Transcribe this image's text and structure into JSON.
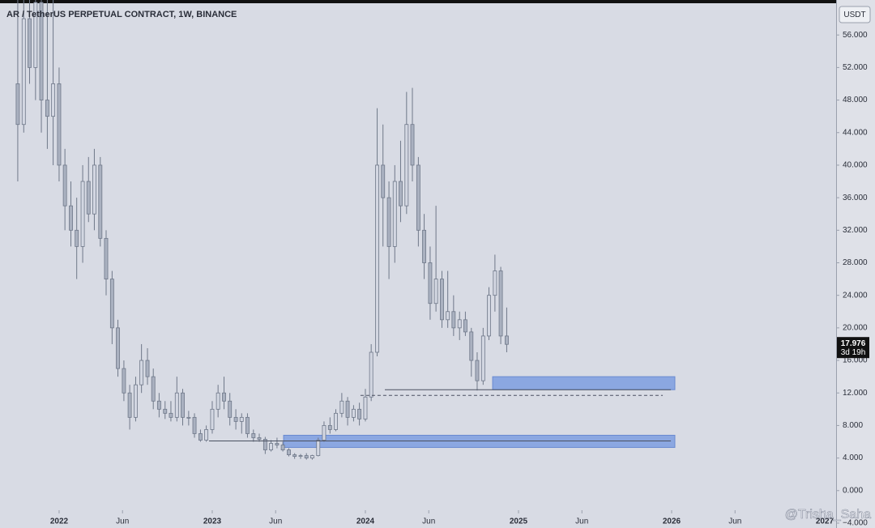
{
  "chart_data": {
    "type": "candlestick",
    "title": "AR / TetherUS PERPETUAL CONTRACT, 1W, BINANCE",
    "currency": "USDT",
    "last_price": 17.976,
    "countdown": "3d 19h",
    "watermark": "@Trisha_Saha",
    "up_color": "#d3d7e2",
    "down_color": "#aab1c0",
    "wick_color": "#6f7889",
    "zone_color": "#7e9ee0",
    "xlim": [
      2021.614,
      2027.074
    ],
    "ylim": [
      -4.6,
      60.3
    ],
    "xticks": [
      {
        "value": 2022,
        "label": "2022"
      },
      {
        "value": 2022.414,
        "label": "Jun"
      },
      {
        "value": 2023,
        "label": "2023"
      },
      {
        "value": 2023.414,
        "label": "Jun"
      },
      {
        "value": 2024,
        "label": "2024"
      },
      {
        "value": 2024.414,
        "label": "Jun"
      },
      {
        "value": 2025,
        "label": "2025"
      },
      {
        "value": 2025.414,
        "label": "Jun"
      },
      {
        "value": 2026,
        "label": "2026"
      },
      {
        "value": 2026.414,
        "label": "Jun"
      },
      {
        "value": 2027,
        "label": "2027"
      }
    ],
    "yticks": [
      {
        "value": 56,
        "label": "56.000"
      },
      {
        "value": 52,
        "label": "52.000"
      },
      {
        "value": 48,
        "label": "48.000"
      },
      {
        "value": 44,
        "label": "44.000"
      },
      {
        "value": 40,
        "label": "40.000"
      },
      {
        "value": 36,
        "label": "36.000"
      },
      {
        "value": 32,
        "label": "32.000"
      },
      {
        "value": 28,
        "label": "28.000"
      },
      {
        "value": 24,
        "label": "24.000"
      },
      {
        "value": 20,
        "label": "20.000"
      },
      {
        "value": 16,
        "label": "16.000"
      },
      {
        "value": 12,
        "label": "12.000"
      },
      {
        "value": 8,
        "label": "8.000"
      },
      {
        "value": 4,
        "label": "4.000"
      },
      {
        "value": 0,
        "label": "0.000"
      },
      {
        "value": -4,
        "label": "−4.000"
      }
    ],
    "candles": [
      [
        2021.73,
        50,
        62,
        38,
        45
      ],
      [
        2021.769,
        45,
        62,
        44,
        58
      ],
      [
        2021.807,
        58,
        62,
        50,
        52
      ],
      [
        2021.846,
        52,
        62,
        48,
        60
      ],
      [
        2021.884,
        60,
        62,
        44,
        48
      ],
      [
        2021.923,
        48,
        62,
        42,
        46
      ],
      [
        2021.961,
        46,
        62,
        40,
        50
      ],
      [
        2022.0,
        50,
        52,
        38,
        40
      ],
      [
        2022.038,
        40,
        42,
        32,
        35
      ],
      [
        2022.077,
        35,
        38,
        30,
        32
      ],
      [
        2022.115,
        32,
        36,
        26,
        30
      ],
      [
        2022.154,
        30,
        40,
        28,
        38
      ],
      [
        2022.192,
        38,
        41,
        33,
        34
      ],
      [
        2022.23,
        34,
        42,
        32,
        40
      ],
      [
        2022.269,
        40,
        41,
        30,
        31
      ],
      [
        2022.307,
        31,
        32,
        24,
        26
      ],
      [
        2022.346,
        26,
        27,
        18,
        20
      ],
      [
        2022.384,
        20,
        21,
        14,
        15
      ],
      [
        2022.423,
        15,
        16,
        11,
        12
      ],
      [
        2022.461,
        12,
        13,
        7.5,
        9
      ],
      [
        2022.5,
        9,
        14,
        8.5,
        13
      ],
      [
        2022.538,
        13,
        18,
        12,
        16
      ],
      [
        2022.577,
        16,
        17.5,
        13,
        14
      ],
      [
        2022.615,
        14,
        15,
        10,
        11
      ],
      [
        2022.653,
        11,
        12,
        9,
        10
      ],
      [
        2022.692,
        10,
        11,
        8.8,
        9.5
      ],
      [
        2022.73,
        9.5,
        11,
        8.5,
        9
      ],
      [
        2022.769,
        9,
        14,
        8.5,
        12
      ],
      [
        2022.807,
        12,
        12.5,
        8,
        9
      ],
      [
        2022.846,
        9,
        9.8,
        8,
        9
      ],
      [
        2022.884,
        9,
        9.5,
        6.5,
        7
      ],
      [
        2022.923,
        7,
        7.5,
        6,
        6.2
      ],
      [
        2022.961,
        6.2,
        8,
        6,
        7.5
      ],
      [
        2023.0,
        7.5,
        11,
        7,
        10
      ],
      [
        2023.038,
        10,
        13,
        9,
        12
      ],
      [
        2023.077,
        12,
        14,
        10,
        11
      ],
      [
        2023.115,
        11,
        12,
        8,
        9
      ],
      [
        2023.154,
        9,
        10,
        7.5,
        8.5
      ],
      [
        2023.192,
        8.5,
        9.5,
        7,
        9
      ],
      [
        2023.23,
        9,
        9.5,
        6.5,
        7
      ],
      [
        2023.269,
        7,
        7.5,
        6,
        6.5
      ],
      [
        2023.307,
        6.5,
        7,
        6,
        6.3
      ],
      [
        2023.346,
        6.3,
        6.6,
        4.5,
        5
      ],
      [
        2023.384,
        5,
        6.2,
        4.8,
        5.8
      ],
      [
        2023.423,
        5.8,
        6.5,
        5.2,
        5.6
      ],
      [
        2023.461,
        5.6,
        6,
        4.8,
        5
      ],
      [
        2023.5,
        5,
        5.2,
        4.2,
        4.4
      ],
      [
        2023.538,
        4.4,
        4.6,
        3.9,
        4.2
      ],
      [
        2023.577,
        4.2,
        4.5,
        3.9,
        4.3
      ],
      [
        2023.615,
        4.3,
        4.6,
        3.8,
        4
      ],
      [
        2023.653,
        4,
        4.4,
        3.8,
        4.3
      ],
      [
        2023.692,
        4.3,
        6.5,
        4.2,
        6.2
      ],
      [
        2023.73,
        6.2,
        8.5,
        6,
        8
      ],
      [
        2023.769,
        8,
        9,
        7,
        7.5
      ],
      [
        2023.807,
        7.5,
        10,
        7.3,
        9.5
      ],
      [
        2023.846,
        9.5,
        12,
        9,
        11
      ],
      [
        2023.884,
        11,
        11.5,
        8,
        9
      ],
      [
        2023.923,
        9,
        10.5,
        8.5,
        10
      ],
      [
        2023.961,
        10,
        10.8,
        8,
        8.8
      ],
      [
        2024.0,
        8.8,
        12.5,
        8.5,
        11.5
      ],
      [
        2024.038,
        11.5,
        18,
        11,
        17
      ],
      [
        2024.077,
        17,
        47,
        16.5,
        40
      ],
      [
        2024.115,
        40,
        45,
        30,
        36
      ],
      [
        2024.154,
        36,
        38,
        26,
        30
      ],
      [
        2024.192,
        30,
        40,
        28,
        38
      ],
      [
        2024.23,
        38,
        43,
        33,
        35
      ],
      [
        2024.269,
        35,
        49,
        34,
        45
      ],
      [
        2024.307,
        45,
        49.5,
        38,
        40
      ],
      [
        2024.346,
        40,
        41,
        30,
        32
      ],
      [
        2024.384,
        32,
        34,
        26,
        28
      ],
      [
        2024.423,
        28,
        30,
        21,
        23
      ],
      [
        2024.461,
        23,
        35,
        22,
        26
      ],
      [
        2024.5,
        26,
        27,
        20,
        21
      ],
      [
        2024.538,
        21,
        27,
        20,
        22
      ],
      [
        2024.576,
        22,
        24,
        19,
        20
      ],
      [
        2024.615,
        20,
        22,
        18.5,
        21
      ],
      [
        2024.653,
        21,
        22,
        19,
        19.5
      ],
      [
        2024.692,
        19.5,
        20,
        14,
        16
      ],
      [
        2024.73,
        16,
        17,
        12.3,
        13.5
      ],
      [
        2024.769,
        13.5,
        20,
        13,
        19
      ],
      [
        2024.807,
        19,
        25,
        18.5,
        24
      ],
      [
        2024.846,
        24,
        29,
        22,
        27
      ],
      [
        2024.884,
        27,
        27.5,
        18,
        19
      ],
      [
        2024.923,
        19,
        22.5,
        17,
        17.976
      ]
    ],
    "zones": [
      {
        "x": [
          2024.831,
          2026.021
        ],
        "y": [
          12.4,
          14
        ]
      },
      {
        "x": [
          2023.466,
          2026.021
        ],
        "y": [
          5.3,
          6.8
        ]
      }
    ],
    "levels": [
      {
        "x": [
          2024.127,
          2025.995
        ],
        "y": 12.4,
        "style": "solid"
      },
      {
        "x": [
          2023.968,
          2025.942
        ],
        "y": 11.7,
        "style": "dashed"
      },
      {
        "x": [
          2022.979,
          2025.995
        ],
        "y": 6.1,
        "style": "solid"
      }
    ]
  }
}
